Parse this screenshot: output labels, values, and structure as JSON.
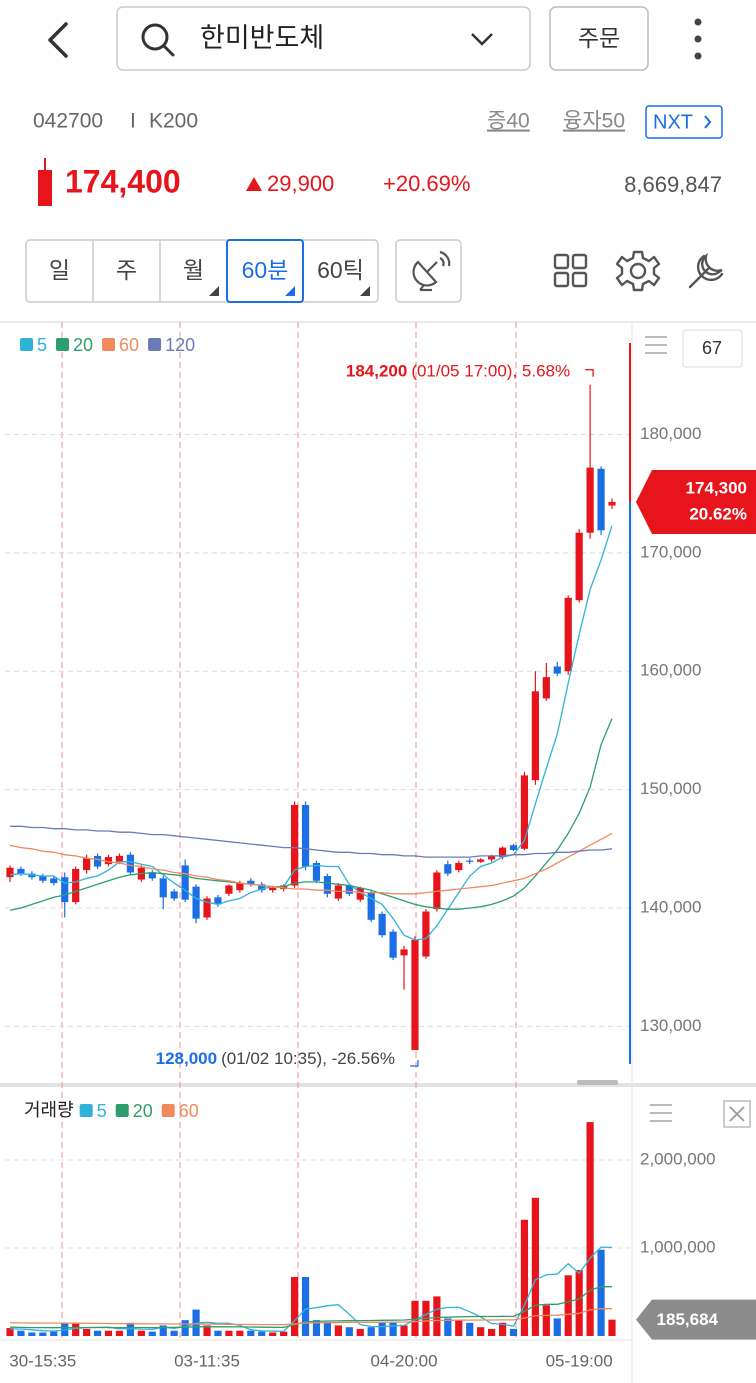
{
  "header": {
    "search_text": "한미반도체",
    "order_button": "주문"
  },
  "stock_info": {
    "code": "042700",
    "separator": "I",
    "index": "K200",
    "margin_rate": "증40",
    "loan_rate": "융자50",
    "nxt_button": "NXT",
    "price": "174,400",
    "change": "29,900",
    "change_rate": "+20.69%",
    "volume": "8,669,847"
  },
  "period_tabs": {
    "items": [
      "일",
      "주",
      "월",
      "60분",
      "60틱"
    ],
    "selected": 3
  },
  "chart_data": [
    {
      "type": "candlestick",
      "up_color": "#e8141b",
      "down_color": "#1a6ee6",
      "grid": true,
      "open": [
        142600,
        143300,
        142900,
        142700,
        142500,
        142600,
        140500,
        143200,
        144400,
        143700,
        143900,
        144500,
        142400,
        143000,
        142500,
        141400,
        143600,
        141800,
        139200,
        140900,
        141200,
        141500,
        142300,
        142000,
        141500,
        141600,
        141900,
        148700,
        143800,
        142700,
        140800,
        141900,
        140700,
        141300,
        139500,
        138000,
        136000,
        128000,
        135900,
        139900,
        143700,
        143200,
        144000,
        143900,
        144100,
        144300,
        145300,
        145000,
        150800,
        157700,
        160400,
        160000,
        166000,
        171700,
        177100,
        174000
      ],
      "high": [
        143600,
        143500,
        143100,
        142900,
        142700,
        143000,
        143500,
        144500,
        144600,
        144500,
        144600,
        144700,
        143600,
        143200,
        142700,
        141600,
        144100,
        142000,
        141000,
        141100,
        142000,
        142300,
        142500,
        142200,
        141800,
        142000,
        149000,
        149000,
        144000,
        142900,
        142100,
        142000,
        141800,
        141500,
        139700,
        138200,
        136800,
        137600,
        139900,
        143200,
        144000,
        144000,
        144200,
        144200,
        144500,
        145200,
        145400,
        151500,
        160000,
        160700,
        160800,
        166400,
        172000,
        184200,
        177300,
        174600
      ],
      "low": [
        142200,
        142700,
        142400,
        142100,
        141900,
        139200,
        140300,
        142900,
        143300,
        143500,
        143700,
        142800,
        142200,
        142300,
        139900,
        140600,
        140500,
        138700,
        139000,
        140100,
        141000,
        141300,
        141800,
        141300,
        141300,
        141400,
        141700,
        143200,
        142100,
        140900,
        140600,
        141000,
        140500,
        138800,
        137500,
        135600,
        133100,
        128000,
        135700,
        139700,
        142700,
        143000,
        143700,
        143800,
        143900,
        144100,
        144800,
        144900,
        150400,
        157500,
        159600,
        159700,
        165800,
        171200,
        171500,
        173700
      ],
      "close": [
        143400,
        142900,
        142600,
        142300,
        142100,
        140500,
        143300,
        144200,
        143500,
        144300,
        144400,
        143000,
        143400,
        142500,
        140900,
        140800,
        140700,
        139100,
        140800,
        140300,
        141900,
        142100,
        142000,
        141500,
        141700,
        141900,
        148700,
        143500,
        142300,
        141200,
        141900,
        141200,
        141700,
        139000,
        137700,
        135800,
        136500,
        137300,
        139700,
        143000,
        142900,
        143800,
        143900,
        144100,
        144400,
        145100,
        144900,
        151200,
        158300,
        159500,
        159800,
        166200,
        171700,
        177200,
        171900,
        174300
      ],
      "series": [
        {
          "name": "5",
          "color": "#2fb3d9",
          "values": [
            142800,
            142900,
            142800,
            142700,
            142700,
            142100,
            142200,
            142500,
            142700,
            143200,
            143900,
            143900,
            143700,
            143500,
            142800,
            142100,
            141500,
            140800,
            140500,
            140300,
            140600,
            140800,
            141300,
            141600,
            141800,
            141800,
            143200,
            143500,
            143600,
            143500,
            143500,
            142000,
            141300,
            140800,
            140300,
            139100,
            137700,
            137300,
            137400,
            138500,
            139900,
            141300,
            142700,
            143500,
            143800,
            144300,
            144500,
            145700,
            148800,
            151800,
            154700,
            159000,
            163100,
            166900,
            169400,
            172300
          ]
        },
        {
          "name": "20",
          "color": "#2e9e6e",
          "values": [
            139800,
            140000,
            140300,
            140600,
            140900,
            141100,
            141400,
            141700,
            142000,
            142300,
            142600,
            142800,
            142900,
            143000,
            142900,
            142800,
            142700,
            142500,
            142400,
            142300,
            142200,
            142100,
            142000,
            141900,
            141800,
            141800,
            142100,
            142200,
            142200,
            142100,
            142000,
            141900,
            141700,
            141500,
            141200,
            140900,
            140600,
            140300,
            140100,
            140000,
            139900,
            139900,
            140000,
            140100,
            140300,
            140600,
            141000,
            141700,
            142700,
            143800,
            144900,
            146300,
            148000,
            150200,
            153800,
            156000
          ]
        },
        {
          "name": "60",
          "color": "#f08a5d",
          "values": [
            145300,
            145100,
            145000,
            144800,
            144700,
            144500,
            144400,
            144200,
            144100,
            143900,
            143800,
            143600,
            143500,
            143300,
            143200,
            143000,
            142900,
            142700,
            142600,
            142400,
            142300,
            142100,
            142000,
            141900,
            141800,
            141700,
            141600,
            141600,
            141500,
            141500,
            141400,
            141400,
            141300,
            141300,
            141300,
            141200,
            141200,
            141200,
            141300,
            141400,
            141500,
            141600,
            141700,
            141800,
            141900,
            142100,
            142300,
            142500,
            142900,
            143300,
            143800,
            144300,
            144800,
            145300,
            145800,
            146300
          ]
        },
        {
          "name": "120",
          "color": "#6b7bb8",
          "values": [
            146900,
            146900,
            146800,
            146800,
            146700,
            146700,
            146600,
            146600,
            146500,
            146500,
            146400,
            146400,
            146300,
            146200,
            146200,
            146100,
            146000,
            145900,
            145800,
            145700,
            145600,
            145500,
            145400,
            145300,
            145200,
            145100,
            145100,
            145000,
            144900,
            144800,
            144700,
            144700,
            144600,
            144600,
            144500,
            144500,
            144400,
            144400,
            144300,
            144300,
            144300,
            144300,
            144300,
            144400,
            144400,
            144400,
            144500,
            144500,
            144600,
            144600,
            144700,
            144700,
            144800,
            144900,
            144900,
            145000
          ]
        }
      ],
      "ylim": [
        125300,
        189500
      ],
      "yticks": [
        {
          "value": 130000,
          "label": "130,000"
        },
        {
          "value": 140000,
          "label": "140,000"
        },
        {
          "value": 150000,
          "label": "150,000"
        },
        {
          "value": 160000,
          "label": "160,000"
        },
        {
          "value": 170000,
          "label": "170,000"
        },
        {
          "value": 180000,
          "label": "180,000"
        }
      ],
      "high_annotation": {
        "value": 184200,
        "label": "184,200",
        "detail": "(01/05 17:00), 5.68%"
      },
      "low_annotation": {
        "value": 128000,
        "label": "128,000",
        "detail": "(01/02 10:35), -26.56%"
      },
      "last_price": {
        "value": 174300,
        "label": "174,300",
        "change_label": "20.62%"
      },
      "indicator_count": "67"
    },
    {
      "type": "bar",
      "legend_title": "거래량",
      "grid": true,
      "categories": [
        null,
        null,
        null,
        "30-15:35",
        null,
        null,
        null,
        null,
        null,
        null,
        null,
        null,
        null,
        null,
        null,
        null,
        null,
        null,
        "03-11:35",
        null,
        null,
        null,
        null,
        null,
        null,
        null,
        null,
        null,
        null,
        null,
        null,
        null,
        null,
        null,
        null,
        null,
        "04-20:00",
        null,
        null,
        null,
        null,
        null,
        null,
        null,
        null,
        null,
        null,
        null,
        null,
        null,
        null,
        null,
        "05-19:00",
        null,
        null,
        null
      ],
      "values": [
        90000,
        60000,
        40000,
        40000,
        50000,
        150000,
        150000,
        80000,
        60000,
        60000,
        60000,
        150000,
        60000,
        50000,
        120000,
        60000,
        180000,
        300000,
        120000,
        60000,
        60000,
        60000,
        60000,
        50000,
        40000,
        50000,
        670000,
        670000,
        180000,
        160000,
        120000,
        100000,
        80000,
        100000,
        150000,
        150000,
        120000,
        400000,
        400000,
        450000,
        200000,
        180000,
        150000,
        100000,
        80000,
        150000,
        80000,
        1320000,
        1570000,
        350000,
        200000,
        690000,
        750000,
        2430000,
        980000,
        185684
      ],
      "series": [
        {
          "name": "5",
          "color": "#2fb3d9",
          "values": [
            80000,
            80000,
            70000,
            60000,
            56000,
            68000,
            86000,
            94000,
            98000,
            100000,
            82000,
            84000,
            78000,
            76000,
            100000,
            86000,
            104000,
            144000,
            156000,
            144000,
            144000,
            120000,
            72000,
            58000,
            54000,
            52000,
            174000,
            306000,
            322000,
            344000,
            356000,
            246000,
            128000,
            108000,
            106000,
            116000,
            120000,
            184000,
            244000,
            304000,
            324000,
            326000,
            276000,
            216000,
            142000,
            132000,
            112000,
            346000,
            640000,
            694000,
            704000,
            822000,
            712000,
            884000,
            1010000,
            1007000
          ]
        },
        {
          "name": "20",
          "color": "#2e9e6e",
          "values": [
            100000,
            98000,
            96000,
            95000,
            94000,
            95000,
            96000,
            97000,
            97000,
            96000,
            95000,
            96000,
            97000,
            96000,
            97000,
            98000,
            100000,
            105000,
            106000,
            105000,
            104000,
            103000,
            102000,
            100000,
            99000,
            98000,
            128000,
            160000,
            166000,
            170000,
            172000,
            174000,
            175000,
            176000,
            178000,
            180000,
            182000,
            190000,
            200000,
            210000,
            214000,
            218000,
            220000,
            222000,
            222000,
            224000,
            222000,
            280000,
            350000,
            360000,
            360000,
            390000,
            420000,
            520000,
            560000,
            560000
          ]
        },
        {
          "name": "60",
          "color": "#f08a5d",
          "values": [
            150000,
            149000,
            148000,
            147000,
            146000,
            146000,
            145000,
            144000,
            143000,
            142000,
            141000,
            140000,
            139000,
            138000,
            137000,
            136000,
            136000,
            136000,
            135000,
            134000,
            133000,
            132000,
            131000,
            130000,
            129000,
            128000,
            138000,
            148000,
            150000,
            152000,
            153000,
            154000,
            155000,
            156000,
            157000,
            158000,
            159000,
            164000,
            170000,
            176000,
            178000,
            180000,
            181000,
            182000,
            182000,
            183000,
            183000,
            204000,
            230000,
            234000,
            236000,
            246000,
            258000,
            296000,
            310000,
            310000
          ]
        }
      ],
      "ylim": [
        0,
        2795000
      ],
      "yticks": [
        {
          "value": 1000000,
          "label": "1,000,000"
        },
        {
          "value": 2000000,
          "label": "2,000,000"
        }
      ],
      "last_value": {
        "value": 185684,
        "label": "185,684"
      }
    }
  ]
}
